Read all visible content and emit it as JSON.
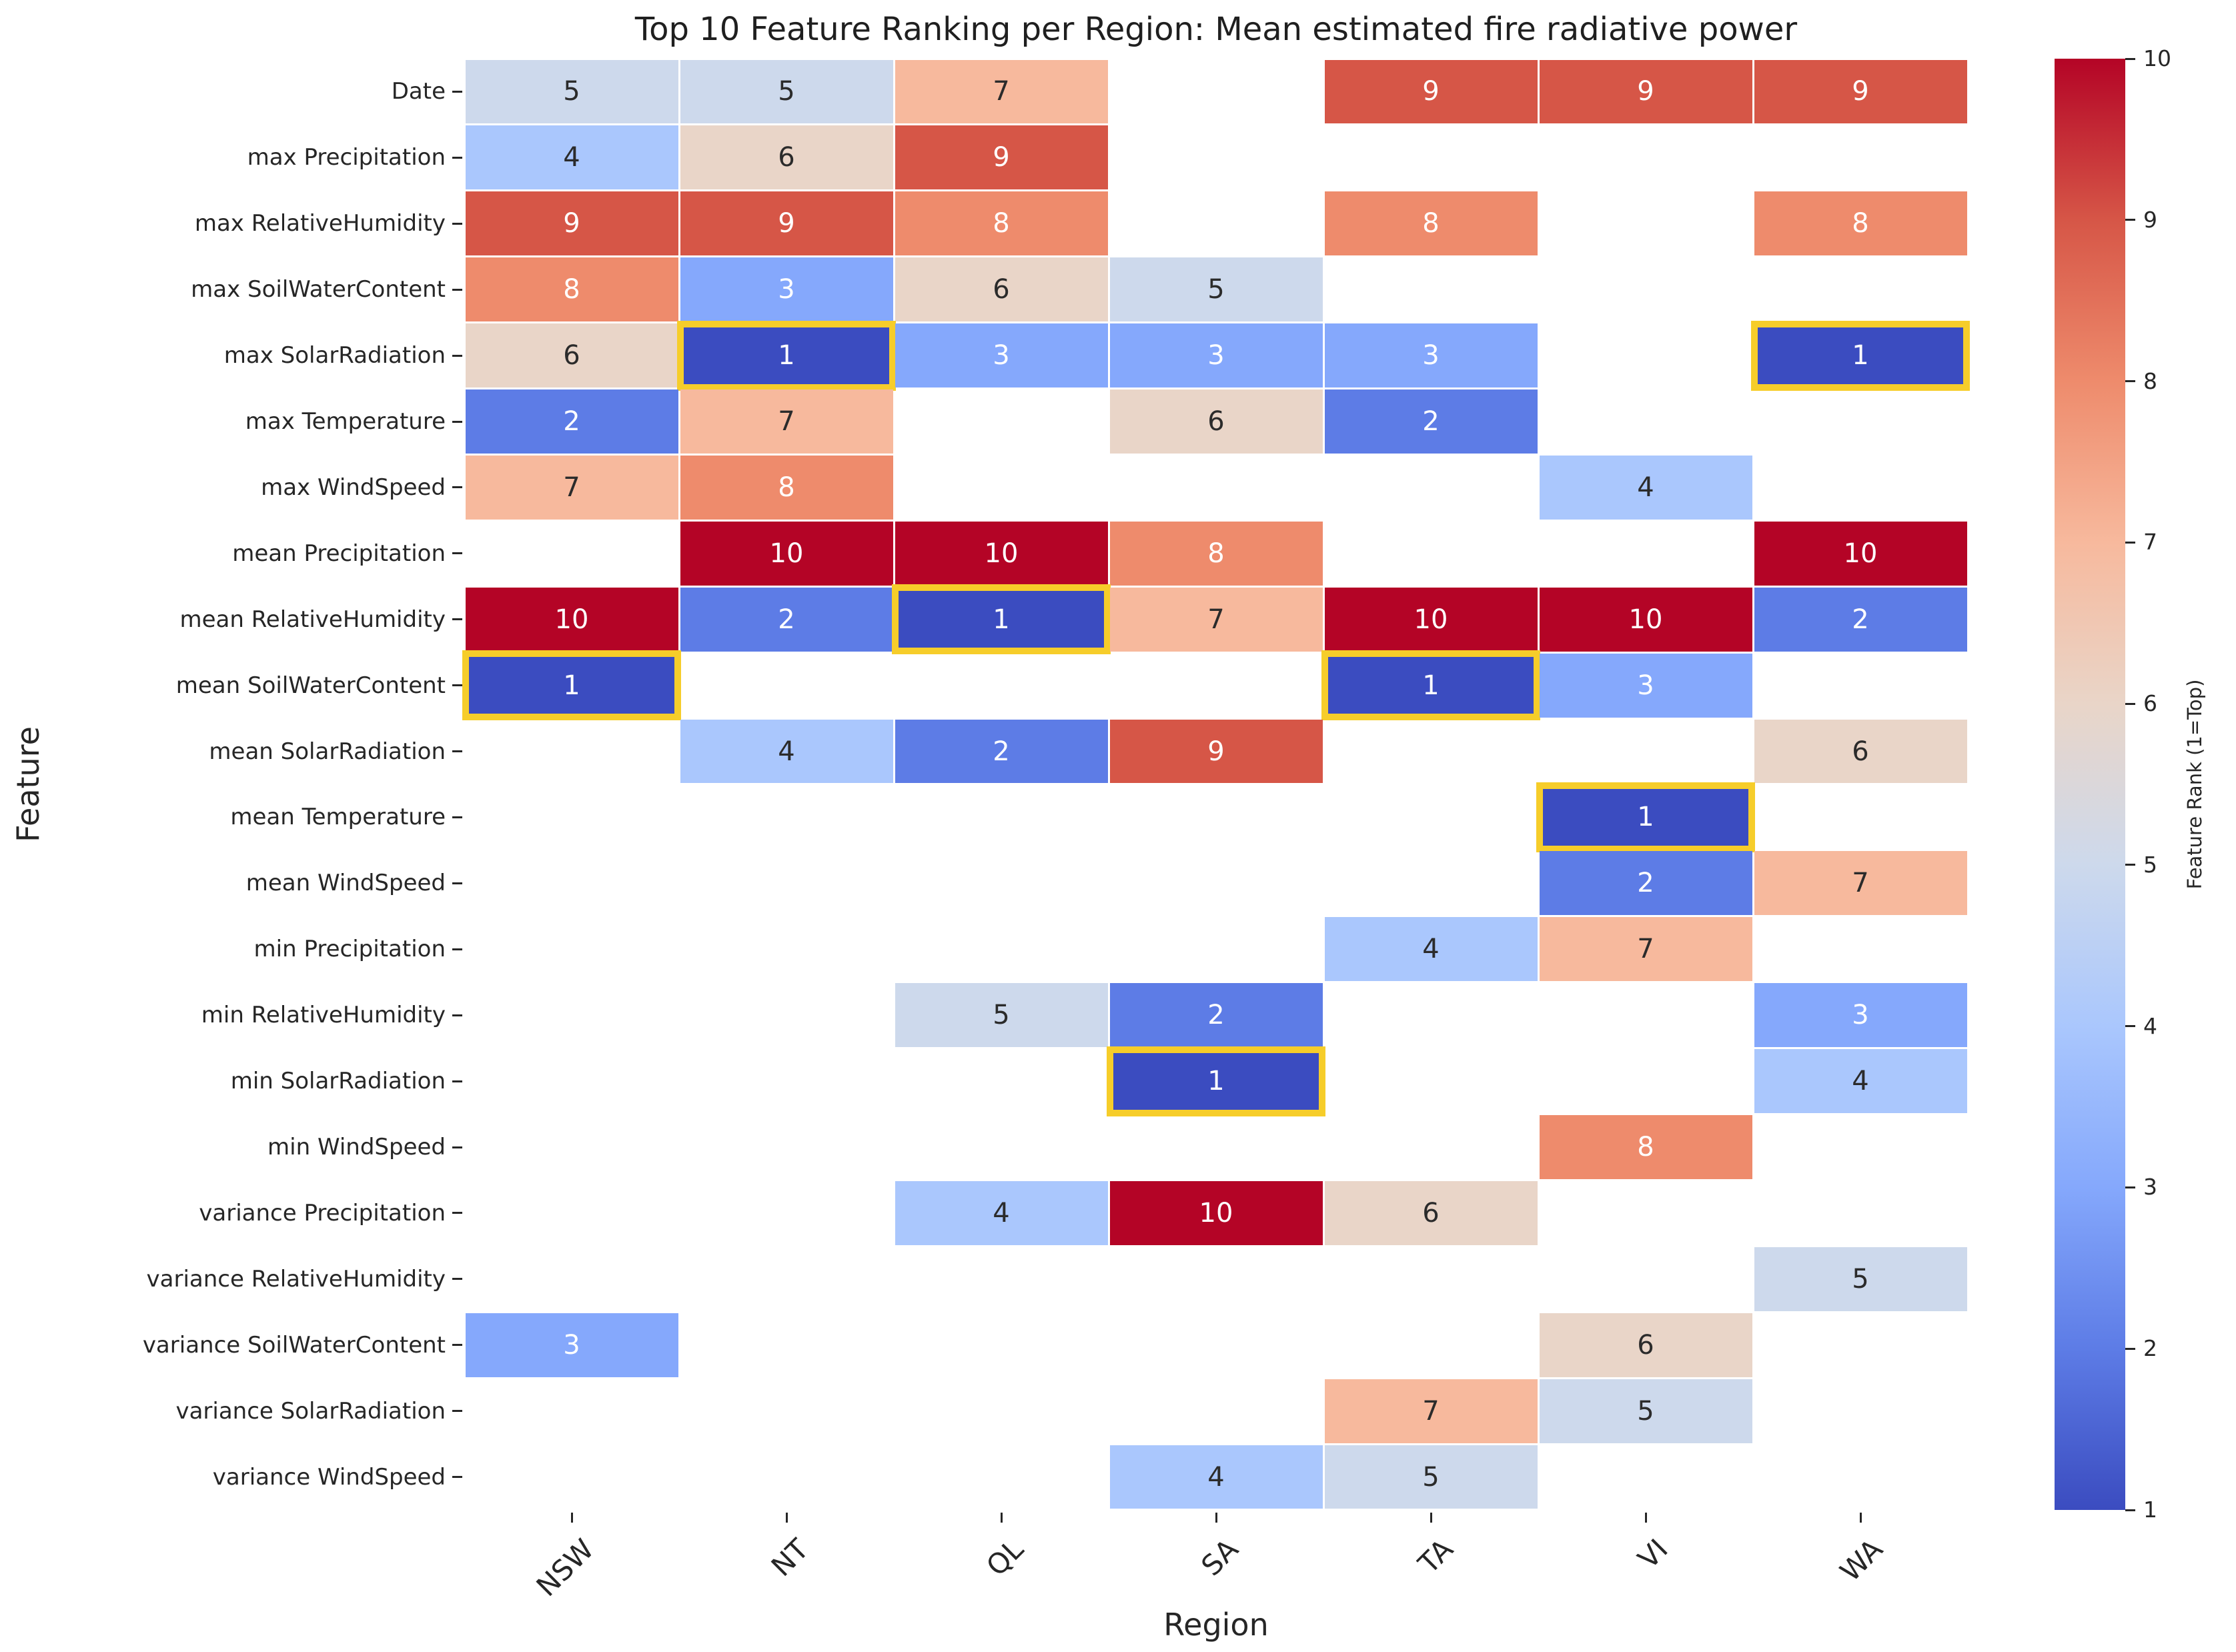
{
  "title": "Top 10 Feature Ranking per Region: Mean estimated fire radiative power",
  "chart_data": {
    "type": "heatmap",
    "title": "Top 10 Feature Ranking per Region: Mean estimated fire radiative power",
    "xlabel": "Region",
    "ylabel": "Feature",
    "columns": [
      "NSW",
      "NT",
      "QL",
      "SA",
      "TA",
      "VI",
      "WA"
    ],
    "rows": [
      "Date",
      "max Precipitation",
      "max RelativeHumidity",
      "max SoilWaterContent",
      "max SolarRadiation",
      "max Temperature",
      "max WindSpeed",
      "mean Precipitation",
      "mean RelativeHumidity",
      "mean SoilWaterContent",
      "mean SolarRadiation",
      "mean Temperature",
      "mean WindSpeed",
      "min Precipitation",
      "min RelativeHumidity",
      "min SolarRadiation",
      "min WindSpeed",
      "variance Precipitation",
      "variance RelativeHumidity",
      "variance SoilWaterContent",
      "variance SolarRadiation",
      "variance WindSpeed"
    ],
    "matrix": [
      [
        5,
        5,
        7,
        null,
        9,
        9,
        9
      ],
      [
        4,
        6,
        9,
        null,
        null,
        null,
        null
      ],
      [
        9,
        9,
        8,
        null,
        8,
        null,
        8
      ],
      [
        8,
        3,
        6,
        5,
        null,
        null,
        null
      ],
      [
        6,
        1,
        3,
        3,
        3,
        null,
        1
      ],
      [
        2,
        7,
        null,
        6,
        2,
        null,
        null
      ],
      [
        7,
        8,
        null,
        null,
        null,
        4,
        null
      ],
      [
        null,
        10,
        10,
        8,
        null,
        null,
        10
      ],
      [
        10,
        2,
        1,
        7,
        10,
        10,
        2
      ],
      [
        1,
        null,
        null,
        null,
        1,
        3,
        null
      ],
      [
        null,
        4,
        2,
        9,
        null,
        null,
        6
      ],
      [
        null,
        null,
        null,
        null,
        null,
        1,
        null
      ],
      [
        null,
        null,
        null,
        null,
        null,
        2,
        7
      ],
      [
        null,
        null,
        null,
        null,
        4,
        7,
        null
      ],
      [
        null,
        null,
        5,
        2,
        null,
        null,
        3
      ],
      [
        null,
        null,
        null,
        1,
        null,
        null,
        4
      ],
      [
        null,
        null,
        null,
        null,
        null,
        8,
        null
      ],
      [
        null,
        null,
        4,
        10,
        6,
        null,
        null
      ],
      [
        null,
        null,
        null,
        null,
        null,
        null,
        5
      ],
      [
        3,
        null,
        null,
        null,
        null,
        6,
        null
      ],
      [
        null,
        null,
        null,
        null,
        7,
        5,
        null
      ],
      [
        null,
        null,
        null,
        4,
        5,
        null,
        null
      ]
    ],
    "value_range": [
      1,
      10
    ],
    "grid": false,
    "legend_position": "right",
    "colorbar": {
      "label": "Feature Rank (1=Top)",
      "ticks": [
        10,
        9,
        8,
        7,
        6,
        5,
        4,
        3,
        2,
        1
      ]
    },
    "palette": {
      "1": "#3b4cc0",
      "2": "#5d7ce6",
      "3": "#85a8fc",
      "4": "#aac7fd",
      "5": "#cdd9ec",
      "6": "#e9d5c8",
      "7": "#f7b99d",
      "8": "#ee8b6c",
      "9": "#d65647",
      "10": "#b40426"
    },
    "highlight_color": "#f6cd2a",
    "highlight_rule": "cells with rank 1 are outlined in gold",
    "dark_text_ranks": [
      4,
      5,
      6,
      7
    ],
    "annotation_colors": {
      "light": "#ffffff",
      "dark": "#2b2b2b"
    }
  }
}
